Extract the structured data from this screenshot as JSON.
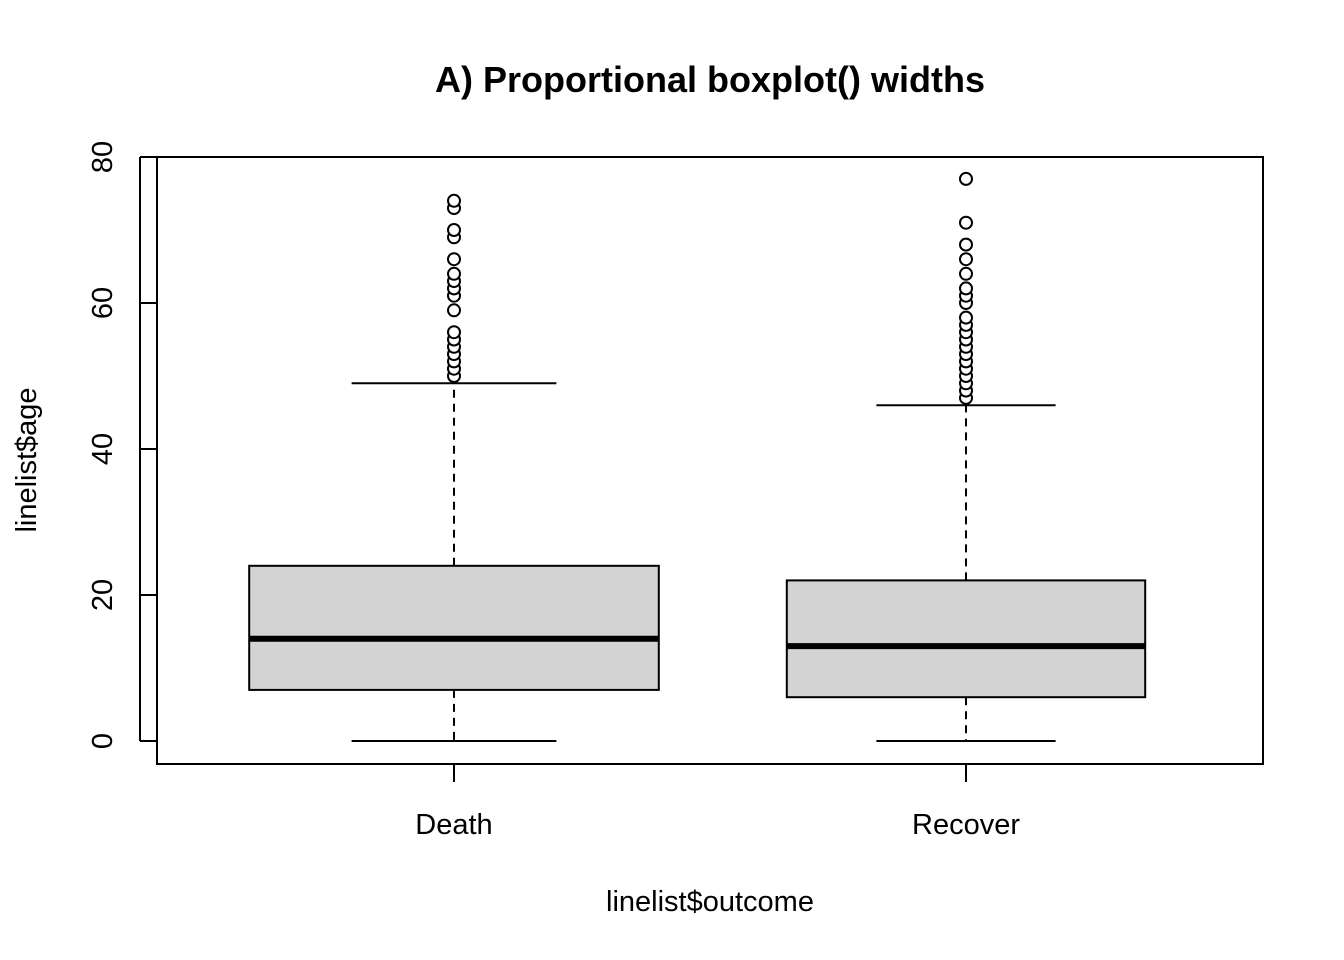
{
  "chart_data": {
    "type": "boxplot",
    "title": "A) Proportional boxplot() widths",
    "xlabel": "linelist$outcome",
    "ylabel": "linelist$age",
    "ylim": [
      -3,
      80
    ],
    "yticks": [
      0,
      20,
      40,
      60,
      80
    ],
    "box_widths": "proportional",
    "box_fill": "#d3d3d3",
    "categories": [
      "Death",
      "Recover"
    ],
    "boxes": [
      {
        "category": "Death",
        "relative_width": 0.8,
        "whisker_low": 0,
        "q1": 7,
        "median": 14,
        "q3": 24,
        "whisker_high": 49,
        "outliers": [
          50,
          51,
          52,
          53,
          54,
          55,
          56,
          59,
          61,
          62,
          63,
          64,
          66,
          69,
          70,
          73,
          74
        ]
      },
      {
        "category": "Recover",
        "relative_width": 0.7,
        "whisker_low": 0,
        "q1": 6,
        "median": 13,
        "q3": 22,
        "whisker_high": 46,
        "outliers": [
          47,
          48,
          49,
          50,
          51,
          52,
          53,
          54,
          55,
          56,
          57,
          58,
          60,
          61,
          62,
          64,
          66,
          68,
          71,
          77
        ]
      }
    ]
  }
}
